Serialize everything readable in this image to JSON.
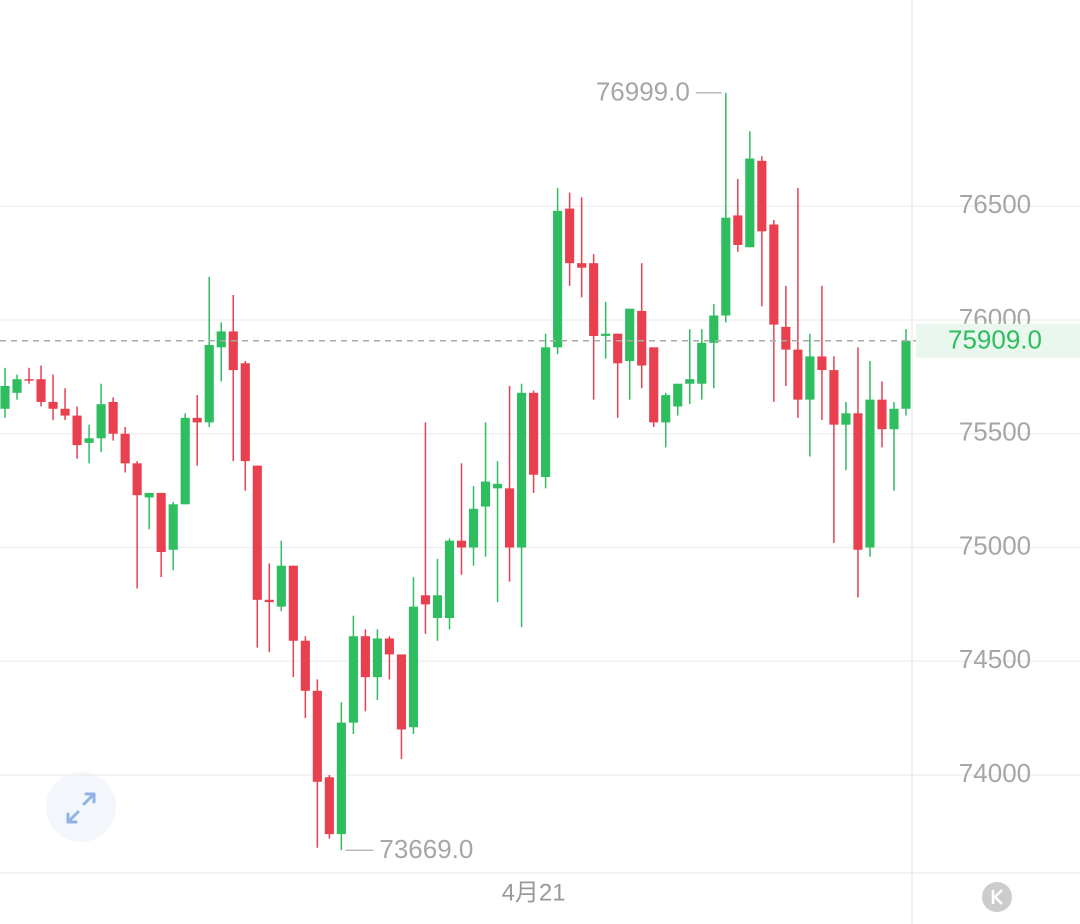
{
  "chart_data": {
    "type": "candlestick",
    "categories": [
      null,
      null,
      null,
      null,
      null,
      null,
      null,
      null,
      null,
      null,
      null,
      null,
      null,
      null,
      null,
      null,
      null,
      null,
      null,
      null,
      null,
      null,
      null,
      null,
      null,
      null,
      null,
      null,
      null,
      null,
      null,
      null,
      null,
      null,
      null,
      null,
      null,
      null,
      null,
      null,
      null,
      null,
      null,
      null,
      "4月21",
      null,
      null,
      null,
      null,
      null,
      null,
      null,
      null,
      null,
      null,
      null,
      null,
      null,
      null,
      null,
      null,
      null,
      null,
      null,
      null,
      null,
      null,
      null,
      null,
      null,
      null,
      null,
      null,
      null,
      null,
      null
    ],
    "open": [
      75610,
      75680,
      75740,
      75740,
      75640,
      75610,
      75580,
      75460,
      75480,
      75640,
      75500,
      75370,
      75220,
      75240,
      74990,
      75190,
      75570,
      75550,
      75880,
      75950,
      75810,
      75360,
      74770,
      74740,
      74920,
      74590,
      74370,
      73990,
      73740,
      74230,
      74610,
      74430,
      74600,
      74530,
      74210,
      74790,
      74690,
      74690,
      75030,
      75000,
      75180,
      75260,
      75260,
      75000,
      75680,
      75310,
      75880,
      76490,
      76250,
      76250,
      75930,
      75940,
      75820,
      76040,
      75880,
      75550,
      75620,
      75720,
      75720,
      75900,
      76020,
      76460,
      76320,
      76700,
      76420,
      75970,
      75870,
      75650,
      75840,
      75780,
      75540,
      75590,
      75000,
      75650,
      75520,
      75610
    ],
    "high": [
      75790,
      75760,
      75790,
      75800,
      75760,
      75700,
      75620,
      75540,
      75720,
      75660,
      75530,
      75380,
      75240,
      75240,
      75200,
      75590,
      75670,
      76190,
      75990,
      76110,
      75820,
      75360,
      74930,
      75030,
      74920,
      74610,
      74420,
      74000,
      74320,
      74700,
      74640,
      74640,
      74610,
      74530,
      74870,
      75550,
      74950,
      75040,
      75370,
      75270,
      75550,
      75380,
      75710,
      75720,
      75690,
      75940,
      76580,
      76560,
      76540,
      76290,
      76080,
      75940,
      76040,
      76250,
      75880,
      75680,
      75720,
      75960,
      75960,
      76070,
      76999,
      76620,
      76830,
      76720,
      76440,
      76150,
      76580,
      75940,
      76150,
      75840,
      75640,
      75880,
      75820,
      75730,
      75640,
      75960
    ],
    "low": [
      75570,
      75650,
      75720,
      75620,
      75560,
      75560,
      75390,
      75370,
      75420,
      75470,
      75330,
      74820,
      75080,
      74870,
      74900,
      75190,
      75360,
      75530,
      75730,
      75380,
      75250,
      74560,
      74540,
      74720,
      74430,
      74250,
      73680,
      73720,
      73669,
      74180,
      74280,
      74330,
      74420,
      74070,
      74180,
      74620,
      74590,
      74640,
      74880,
      74920,
      74960,
      74760,
      74850,
      74650,
      75240,
      75260,
      75850,
      76150,
      76100,
      75650,
      75830,
      75570,
      75650,
      75700,
      75530,
      75440,
      75580,
      75630,
      75650,
      75700,
      75990,
      76300,
      76320,
      76060,
      75640,
      75710,
      75570,
      75400,
      75560,
      75020,
      75340,
      74780,
      74960,
      75440,
      75250,
      75580
    ],
    "close": [
      75710,
      75740,
      75735,
      75640,
      75610,
      75580,
      75450,
      75480,
      75630,
      75500,
      75370,
      75230,
      75240,
      74980,
      75190,
      75570,
      75550,
      75890,
      75950,
      75780,
      75380,
      74770,
      74760,
      74920,
      74590,
      74370,
      73970,
      73740,
      74230,
      74610,
      74430,
      74600,
      74530,
      74200,
      74740,
      74750,
      74790,
      75030,
      75000,
      75170,
      75290,
      75280,
      75000,
      75680,
      75320,
      75880,
      76480,
      76250,
      76230,
      75930,
      75940,
      75810,
      76050,
      75800,
      75550,
      75670,
      75720,
      75740,
      75900,
      76020,
      76450,
      76330,
      76710,
      76390,
      75980,
      75870,
      75650,
      75840,
      75780,
      75540,
      75590,
      74990,
      75650,
      75520,
      75610,
      75909
    ],
    "up_color": "#2ebd5f",
    "down_color": "#e8404f",
    "ylim": [
      73569,
      77407
    ],
    "yticks": [
      74000,
      74500,
      75000,
      75500,
      76000,
      76500
    ],
    "grid": true,
    "annotations": [
      {
        "value": 76999,
        "label": "76999.0"
      },
      {
        "value": 73669,
        "label": "73669.0"
      }
    ],
    "last_price": {
      "value": 75909,
      "label": "75909.0"
    }
  }
}
